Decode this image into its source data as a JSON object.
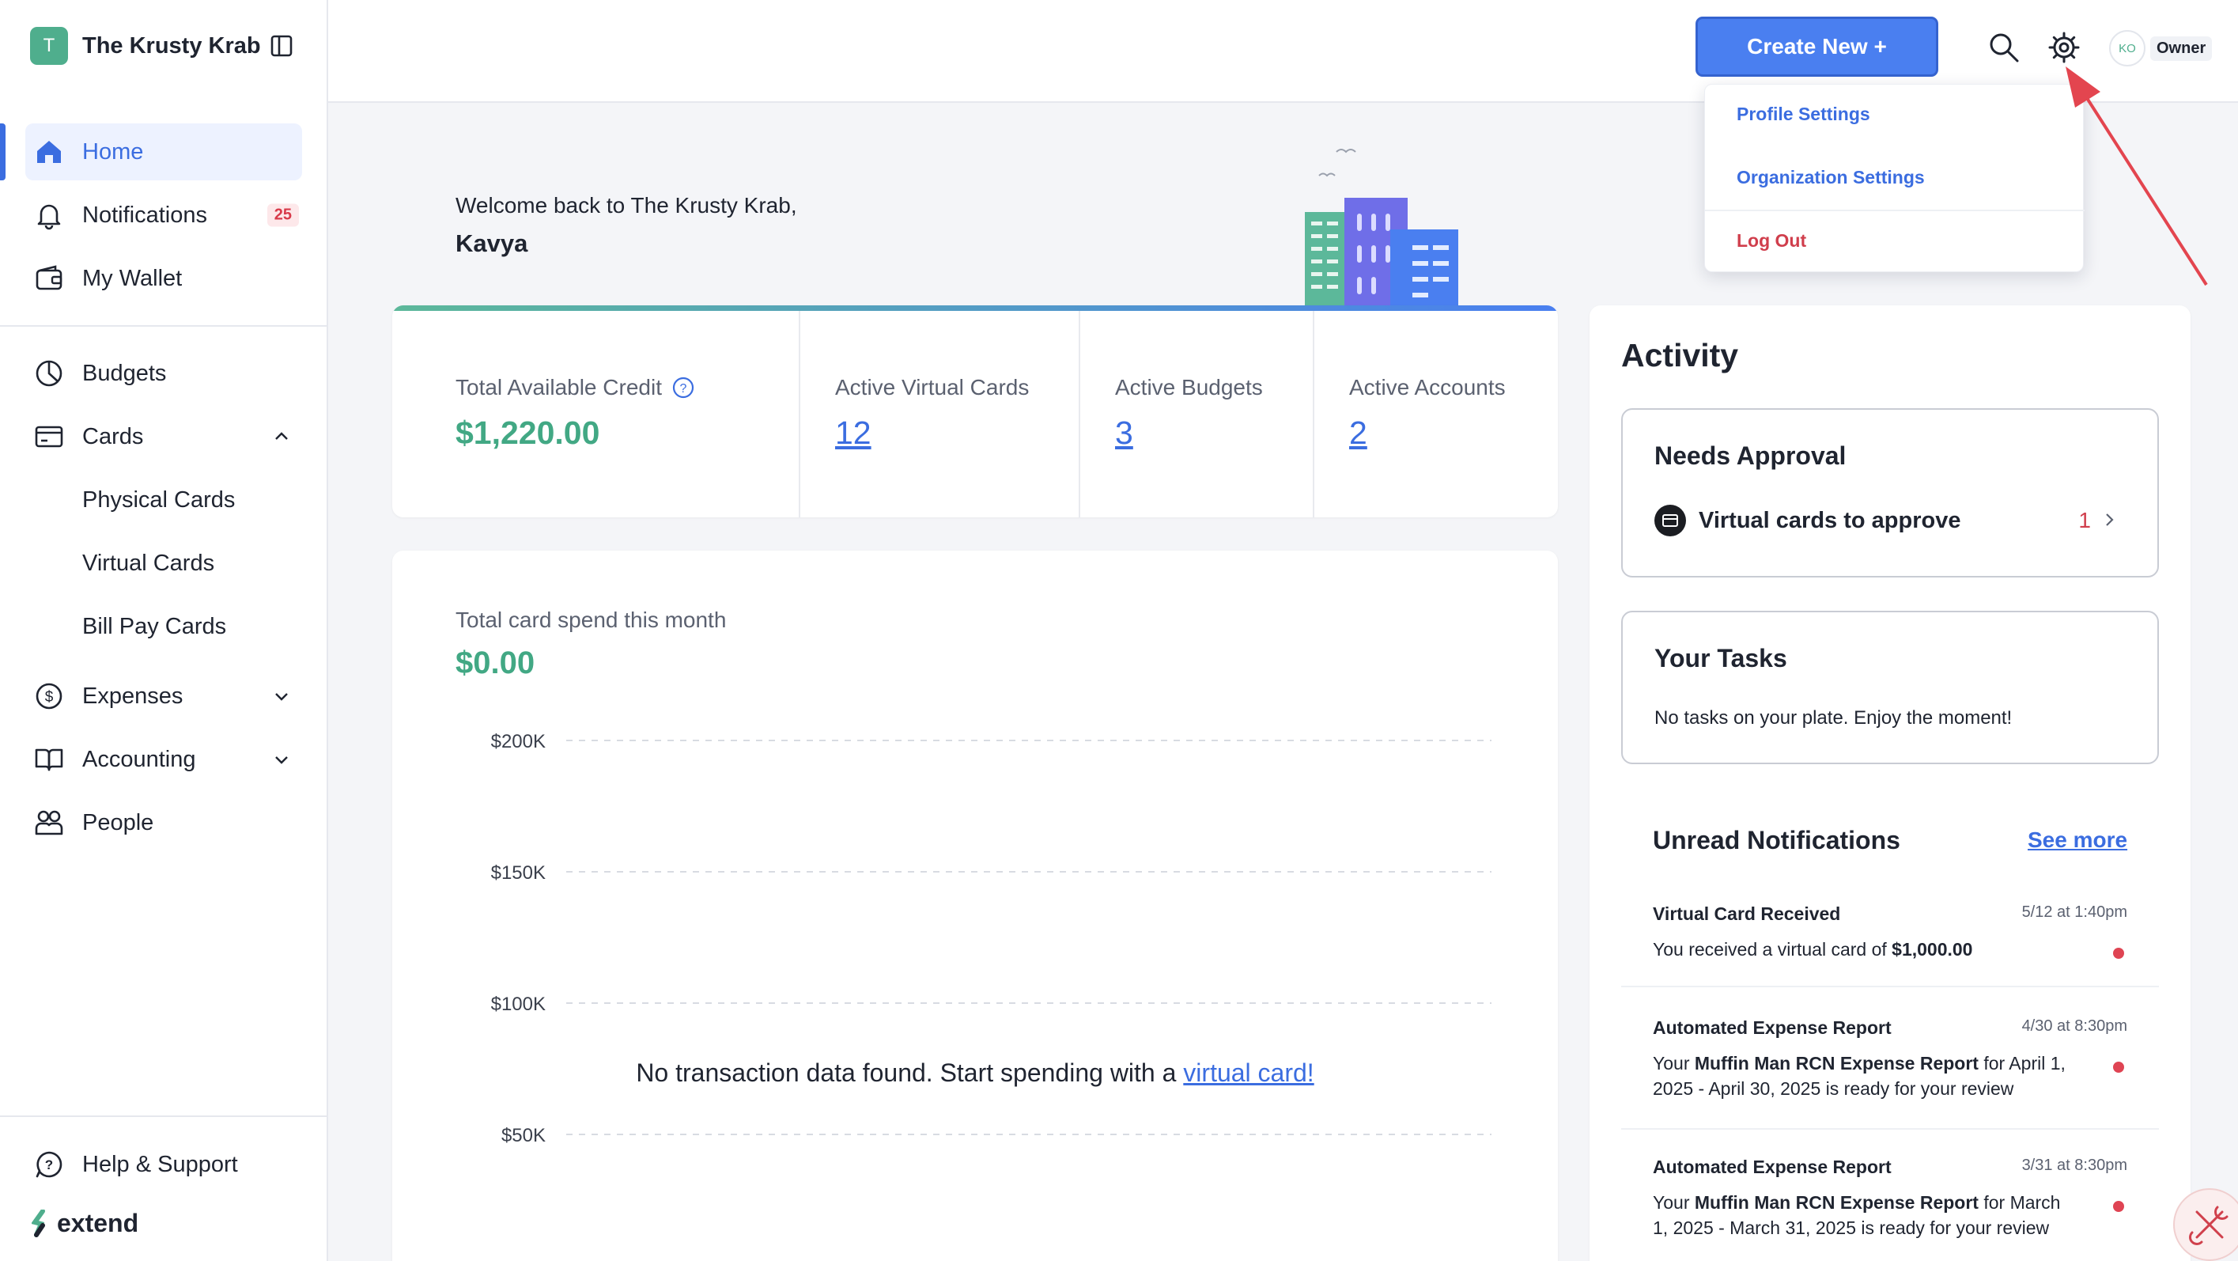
{
  "org": {
    "initial": "T",
    "name": "The Krusty Krab"
  },
  "sidebar": {
    "items": [
      {
        "label": "Home",
        "icon": "home-icon"
      },
      {
        "label": "Notifications",
        "icon": "bell-icon",
        "badge": "25"
      },
      {
        "label": "My Wallet",
        "icon": "wallet-icon"
      },
      {
        "label": "Budgets",
        "icon": "budget-icon"
      },
      {
        "label": "Cards",
        "icon": "card-icon"
      },
      {
        "label": "Expenses",
        "icon": "dollar-circle-icon"
      },
      {
        "label": "Accounting",
        "icon": "book-icon"
      },
      {
        "label": "People",
        "icon": "people-icon"
      }
    ],
    "card_subitems": [
      "Physical Cards",
      "Virtual Cards",
      "Bill Pay Cards"
    ],
    "help": "Help & Support",
    "brand": "extend"
  },
  "topbar": {
    "create_label": "Create New +",
    "avatar_initials": "KO",
    "role": "Owner"
  },
  "dropdown": {
    "items": [
      "Profile Settings",
      "Organization Settings",
      "Log Out"
    ]
  },
  "welcome": {
    "line": "Welcome back to The Krusty Krab,",
    "name": "Kavya"
  },
  "stats": {
    "credit_label": "Total Available Credit",
    "credit_value": "$1,220.00",
    "virtual_label": "Active Virtual Cards",
    "virtual_value": "12",
    "budgets_label": "Active Budgets",
    "budgets_value": "3",
    "accounts_label": "Active Accounts",
    "accounts_value": "2"
  },
  "spend": {
    "label": "Total card spend this month",
    "value": "$0.00",
    "empty_text": "No transaction data found. Start spending with a ",
    "empty_link": "virtual card!"
  },
  "chart_data": {
    "type": "line",
    "y_ticks": [
      "$200K",
      "$150K",
      "$100K",
      "$50K"
    ],
    "tick_values": [
      200000,
      150000,
      100000,
      50000
    ],
    "series": [],
    "grid": true
  },
  "activity": {
    "title": "Activity",
    "needs_approval": {
      "title": "Needs Approval",
      "label": "Virtual cards to approve",
      "count": "1"
    },
    "tasks": {
      "title": "Your Tasks",
      "text": "No tasks on your plate. Enjoy the moment!"
    },
    "unread_title": "Unread Notifications",
    "see_more": "See more",
    "notifications": [
      {
        "title": "Virtual Card Received",
        "time": "5/12 at 1:40pm",
        "pre": "You received a virtual card of ",
        "bold": "$1,000.00",
        "post": ""
      },
      {
        "title": "Automated Expense Report",
        "time": "4/30 at 8:30pm",
        "pre": "Your ",
        "bold": "Muffin Man RCN Expense Report",
        "post": " for April 1, 2025 - April 30, 2025 is ready for your review"
      },
      {
        "title": "Automated Expense Report",
        "time": "3/31 at 8:30pm",
        "pre": "Your ",
        "bold": "Muffin Man RCN Expense Report",
        "post": " for March 1, 2025 - March 31, 2025 is ready for your review"
      }
    ]
  },
  "colors": {
    "accent": "#4a7ff0",
    "money": "#42a884",
    "danger": "#d03e4c",
    "annotation_arrow": "#e3454f"
  }
}
